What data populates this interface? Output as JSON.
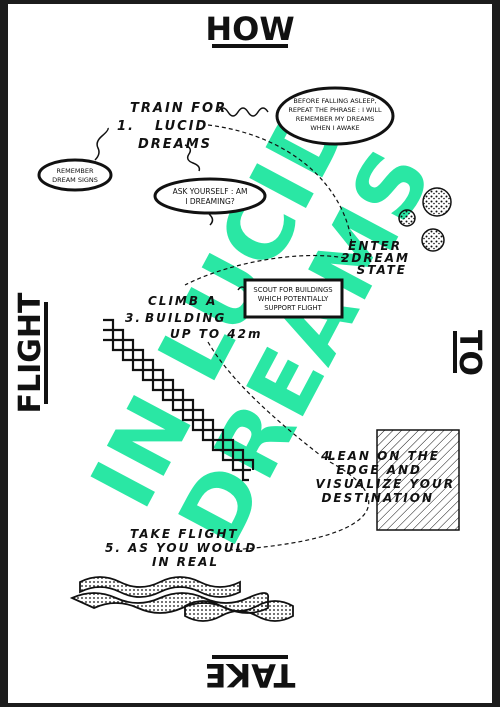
{
  "colors": {
    "accent": "#1fe6a0",
    "ink": "#111111",
    "paper": "#ffffff",
    "frame": "#1c1c1c"
  },
  "title": {
    "top": "HOW",
    "right": "TO",
    "bottom": "TAKE",
    "left": "FLIGHT"
  },
  "overlay": {
    "line1": "IN LUCID",
    "line2": "DREAMS"
  },
  "steps": [
    {
      "num": "1.",
      "lines": [
        "TRAIN FOR",
        "LUCID",
        "DREAMS"
      ]
    },
    {
      "num": "2.",
      "lines": [
        "ENTER",
        "DREAM",
        "STATE"
      ]
    },
    {
      "num": "3.",
      "lines": [
        "CLIMB A",
        "BUILDING",
        "UP TO 42m"
      ]
    },
    {
      "num": "4.",
      "lines": [
        "LEAN ON THE",
        "EDGE AND",
        "VISUALIZE YOUR",
        "DESTINATION"
      ]
    },
    {
      "num": "5.",
      "lines": [
        "TAKE FLIGHT",
        "AS YOU WOULD",
        "IN REAL"
      ]
    }
  ],
  "bubbles": {
    "phrase": [
      "BEFORE FALLING ASLEEP,",
      "REPEAT THE PHRASE : I WILL",
      "REMEMBER MY DREAMS",
      "WHEN I AWAKE"
    ],
    "signs": [
      "REMEMBER",
      "DREAM SIGNS"
    ],
    "ask": [
      "ASK YOURSELF : AM",
      "I DREAMING?"
    ],
    "scout": [
      "SCOUT FOR BUILDINGS",
      "WHICH POTENTIALLY",
      "SUPPORT FLIGHT"
    ]
  }
}
